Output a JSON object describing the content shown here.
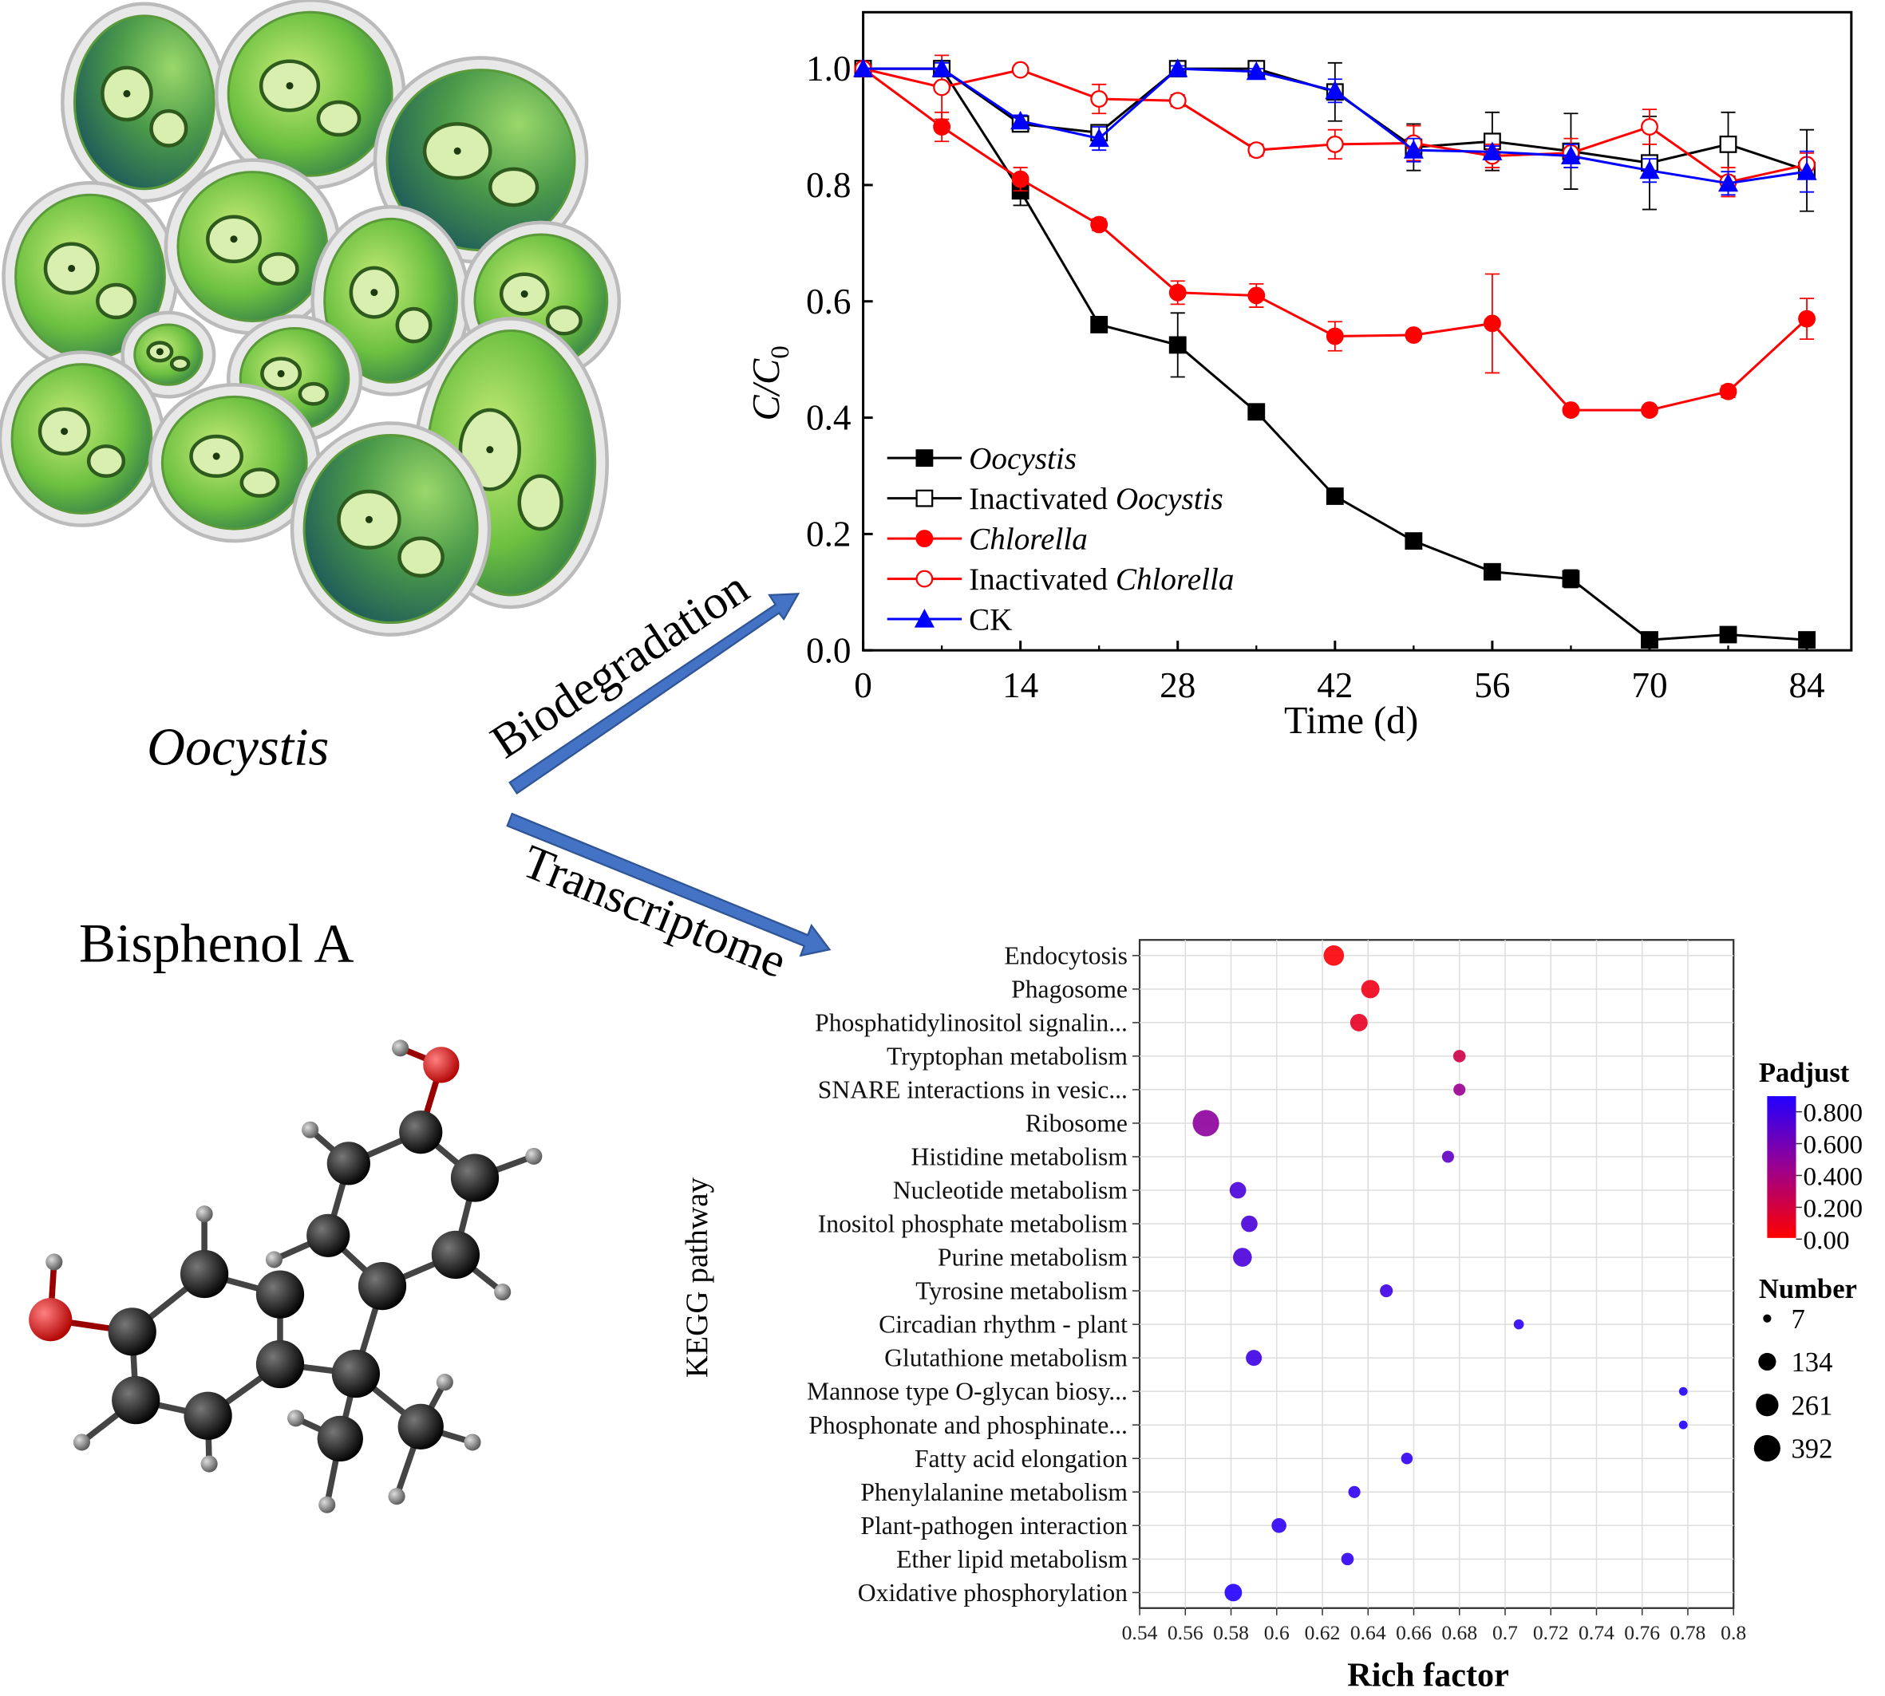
{
  "figure": {
    "organism_label": "Oocystis",
    "compound_label": "Bisphenol A",
    "arrow_top_label": "Biodegradation",
    "arrow_bottom_label": "Transcriptome"
  },
  "chart_data": [
    {
      "type": "line",
      "title": "",
      "xlabel": "Time (d)",
      "ylabel_main": "C/C",
      "ylabel_sub": "0",
      "xlim": [
        0,
        88
      ],
      "ylim": [
        0,
        1.1
      ],
      "xticks": [
        "0",
        "14",
        "28",
        "42",
        "56",
        "70",
        "84"
      ],
      "yticks": [
        "0.0",
        "0.2",
        "0.4",
        "0.6",
        "0.8",
        "1.0"
      ],
      "legend_position": "bottom-left",
      "x": [
        0,
        7,
        14,
        21,
        28,
        35,
        42,
        49,
        56,
        63,
        70,
        77,
        84
      ],
      "series": [
        {
          "name": "Oocystis",
          "prefix": "",
          "italic": "Oocystis",
          "color": "#000000",
          "marker": "square-filled",
          "values": [
            1.0,
            1.0,
            0.79,
            0.56,
            0.525,
            0.41,
            0.265,
            0.188,
            0.135,
            0.123,
            0.018,
            0.027,
            0.018
          ],
          "errors": [
            0,
            0.01,
            0.025,
            0.008,
            0.055,
            0.012,
            0.008,
            0.008,
            0.012,
            0.015,
            0.006,
            0.006,
            0.005
          ]
        },
        {
          "name": "Inactivated Oocystis",
          "prefix": "Inactivated ",
          "italic": "Oocystis",
          "color": "#000000",
          "marker": "square-open",
          "values": [
            1.0,
            1.0,
            0.905,
            0.89,
            1.0,
            1.0,
            0.96,
            0.865,
            0.875,
            0.858,
            0.838,
            0.87,
            0.825
          ],
          "errors": [
            0,
            0.01,
            0.01,
            0.008,
            0.005,
            0.005,
            0.05,
            0.04,
            0.05,
            0.065,
            0.08,
            0.055,
            0.07
          ]
        },
        {
          "name": "Chlorella",
          "prefix": "",
          "italic": "Chlorella",
          "color": "#ff0000",
          "marker": "circle-filled",
          "values": [
            1.0,
            0.9,
            0.81,
            0.732,
            0.615,
            0.61,
            0.54,
            0.542,
            0.562,
            0.413,
            0.413,
            0.445,
            0.57
          ],
          "errors": [
            0,
            0.025,
            0.02,
            0.01,
            0.02,
            0.02,
            0.025,
            0.008,
            0.085,
            0.005,
            0.005,
            0.01,
            0.035
          ]
        },
        {
          "name": "Inactivated Chlorella",
          "prefix": "Inactivated ",
          "italic": "Chlorella",
          "color": "#ff0000",
          "marker": "circle-open",
          "values": [
            1.0,
            0.968,
            0.998,
            0.948,
            0.945,
            0.86,
            0.87,
            0.872,
            0.85,
            0.855,
            0.9,
            0.805,
            0.835
          ],
          "errors": [
            0,
            0.055,
            0.005,
            0.025,
            0.01,
            0.01,
            0.025,
            0.03,
            0.02,
            0.025,
            0.03,
            0.025,
            0.02
          ]
        },
        {
          "name": "CK",
          "prefix": "CK",
          "italic": "",
          "color": "#0000ff",
          "marker": "triangle-filled",
          "values": [
            1.0,
            1.0,
            0.91,
            0.88,
            1.0,
            0.995,
            0.962,
            0.86,
            0.857,
            0.85,
            0.825,
            0.803,
            0.823
          ],
          "errors": [
            0,
            0.01,
            0.01,
            0.02,
            0.005,
            0.005,
            0.02,
            0.02,
            0.01,
            0.02,
            0.02,
            0.02,
            0.035
          ]
        }
      ]
    },
    {
      "type": "scatter",
      "title": "",
      "xlabel": "Rich factor",
      "ylabel": "KEGG pathway",
      "xlim": [
        0.54,
        0.8
      ],
      "xticks": [
        "0.54",
        "0.56",
        "0.58",
        "0.6",
        "0.62",
        "0.64",
        "0.66",
        "0.68",
        "0.7",
        "0.72",
        "0.74",
        "0.76",
        "0.78",
        "0.8"
      ],
      "color_legend": {
        "title": "Padjust",
        "ticks": [
          "0.800",
          "0.600",
          "0.400",
          "0.200",
          "0.00"
        ],
        "low_color": "#ff0000",
        "high_color": "#2200ff"
      },
      "size_legend": {
        "title": "Number",
        "values": [
          "7",
          "134",
          "261",
          "392"
        ]
      },
      "points": [
        {
          "pathway": "Endocytosis",
          "rich_factor": 0.625,
          "padjust": 0.02,
          "number": 200
        },
        {
          "pathway": "Phagosome",
          "rich_factor": 0.641,
          "padjust": 0.06,
          "number": 150
        },
        {
          "pathway": "Phosphatidylinositol signalin...",
          "rich_factor": 0.636,
          "padjust": 0.1,
          "number": 130
        },
        {
          "pathway": "Tryptophan metabolism",
          "rich_factor": 0.68,
          "padjust": 0.2,
          "number": 45
        },
        {
          "pathway": "SNARE interactions in vesic...",
          "rich_factor": 0.68,
          "padjust": 0.4,
          "number": 40
        },
        {
          "pathway": "Ribosome",
          "rich_factor": 0.569,
          "padjust": 0.45,
          "number": 392
        },
        {
          "pathway": "Histidine metabolism",
          "rich_factor": 0.675,
          "padjust": 0.62,
          "number": 40
        },
        {
          "pathway": "Nucleotide metabolism",
          "rich_factor": 0.583,
          "padjust": 0.7,
          "number": 110
        },
        {
          "pathway": "Inositol phosphate metabolism",
          "rich_factor": 0.588,
          "padjust": 0.7,
          "number": 110
        },
        {
          "pathway": "Purine metabolism",
          "rich_factor": 0.585,
          "padjust": 0.7,
          "number": 160
        },
        {
          "pathway": "Tyrosine metabolism",
          "rich_factor": 0.648,
          "padjust": 0.75,
          "number": 50
        },
        {
          "pathway": "Circadian rhythm - plant",
          "rich_factor": 0.706,
          "padjust": 0.8,
          "number": 20
        },
        {
          "pathway": "Glutathione metabolism",
          "rich_factor": 0.59,
          "padjust": 0.75,
          "number": 100
        },
        {
          "pathway": "Mannose type O-glycan biosy...",
          "rich_factor": 0.778,
          "padjust": 0.85,
          "number": 10
        },
        {
          "pathway": "Phosphonate and phosphinate...",
          "rich_factor": 0.778,
          "padjust": 0.85,
          "number": 10
        },
        {
          "pathway": "Fatty acid elongation",
          "rich_factor": 0.657,
          "padjust": 0.8,
          "number": 35
        },
        {
          "pathway": "Phenylalanine metabolism",
          "rich_factor": 0.634,
          "padjust": 0.8,
          "number": 40
        },
        {
          "pathway": "Plant-pathogen interaction",
          "rich_factor": 0.601,
          "padjust": 0.8,
          "number": 80
        },
        {
          "pathway": "Ether lipid metabolism",
          "rich_factor": 0.631,
          "padjust": 0.8,
          "number": 45
        },
        {
          "pathway": "Oxidative phosphorylation",
          "rich_factor": 0.581,
          "padjust": 0.85,
          "number": 130
        }
      ]
    }
  ]
}
